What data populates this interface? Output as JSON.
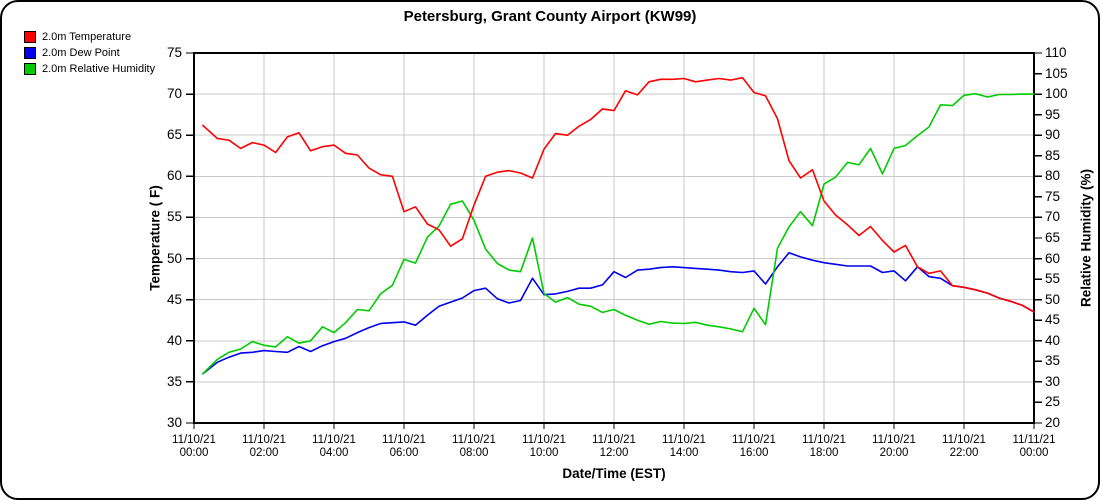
{
  "chart_data": {
    "type": "line",
    "title": "Petersburg, Grant County Airport (KW99)",
    "xlabel": "Date/Time (EST)",
    "legend_position": "top-left-outside",
    "grid": {
      "color": "#c9c9c9",
      "h_step_left_axis": 5,
      "v_step_hours": 2
    },
    "y_left": {
      "label": "Temperature ( F)",
      "min": 30,
      "max": 75,
      "tick_step": 5,
      "ticks": [
        75,
        70,
        65,
        60,
        55,
        50,
        45,
        40,
        35,
        30
      ]
    },
    "y_right": {
      "label": "Relative Humidity (%)",
      "min": 20,
      "max": 110,
      "tick_step": 5,
      "ticks": [
        110,
        105,
        100,
        95,
        90,
        85,
        80,
        75,
        70,
        65,
        60,
        55,
        50,
        45,
        40,
        35,
        30,
        25,
        20
      ]
    },
    "x_axis": {
      "min_hours": 0,
      "max_hours": 24
    },
    "x_ticks": [
      {
        "date": "11/10/21",
        "time": "00:00"
      },
      {
        "date": "11/10/21",
        "time": "02:00"
      },
      {
        "date": "11/10/21",
        "time": "04:00"
      },
      {
        "date": "11/10/21",
        "time": "06:00"
      },
      {
        "date": "11/10/21",
        "time": "08:00"
      },
      {
        "date": "11/10/21",
        "time": "10:00"
      },
      {
        "date": "11/10/21",
        "time": "12:00"
      },
      {
        "date": "11/10/21",
        "time": "14:00"
      },
      {
        "date": "11/10/21",
        "time": "16:00"
      },
      {
        "date": "11/10/21",
        "time": "18:00"
      },
      {
        "date": "11/10/21",
        "time": "20:00"
      },
      {
        "date": "11/10/21",
        "time": "22:00"
      },
      {
        "date": "11/11/21",
        "time": "00:00"
      }
    ],
    "x_hours": [
      0.25,
      0.67,
      1.0,
      1.33,
      1.67,
      2.0,
      2.33,
      2.67,
      3.0,
      3.33,
      3.67,
      4.0,
      4.33,
      4.67,
      5.0,
      5.33,
      5.67,
      6.0,
      6.33,
      6.67,
      7.0,
      7.33,
      7.67,
      8.0,
      8.33,
      8.67,
      9.0,
      9.33,
      9.67,
      10.0,
      10.33,
      10.67,
      11.0,
      11.33,
      11.67,
      12.0,
      12.33,
      12.67,
      13.0,
      13.33,
      13.67,
      14.0,
      14.33,
      14.67,
      15.0,
      15.33,
      15.67,
      16.0,
      16.33,
      16.67,
      17.0,
      17.33,
      17.67,
      18.0,
      18.33,
      18.67,
      19.0,
      19.33,
      19.67,
      20.0,
      20.33,
      20.67,
      21.0,
      21.33,
      21.67,
      22.0,
      22.33,
      22.67,
      23.0,
      23.33,
      23.67,
      24.0
    ],
    "series": [
      {
        "name": "2.0m Temperature",
        "axis": "left",
        "unit": "F",
        "color": "#ff0000",
        "values": [
          66.2,
          64.6,
          64.4,
          63.4,
          64.1,
          63.8,
          62.9,
          64.8,
          65.3,
          63.1,
          63.6,
          63.8,
          62.8,
          62.6,
          61.0,
          60.2,
          60.0,
          55.7,
          56.3,
          54.2,
          53.5,
          51.5,
          52.4,
          56.5,
          60.0,
          60.5,
          60.7,
          60.4,
          59.8,
          63.3,
          65.2,
          65.0,
          66.1,
          66.9,
          68.2,
          68.0,
          70.4,
          69.9,
          71.5,
          71.8,
          71.8,
          71.9,
          71.5,
          71.7,
          71.9,
          71.7,
          72.0,
          70.2,
          69.8,
          67.0,
          61.9,
          59.8,
          60.8,
          57.0,
          55.3,
          54.1,
          52.8,
          53.9,
          52.2,
          50.8,
          51.6,
          49.0,
          48.2,
          48.5,
          46.7,
          46.5,
          46.2,
          45.8,
          45.2,
          44.8,
          44.3,
          43.5
        ]
      },
      {
        "name": "2.0m Dew Point",
        "axis": "left",
        "unit": "F",
        "color": "#0000ee",
        "values": [
          36.0,
          37.4,
          38.0,
          38.5,
          38.6,
          38.8,
          38.7,
          38.6,
          39.3,
          38.7,
          39.4,
          39.9,
          40.3,
          41.0,
          41.6,
          42.1,
          42.2,
          42.3,
          41.9,
          43.1,
          44.2,
          44.7,
          45.2,
          46.1,
          46.4,
          45.1,
          44.6,
          44.9,
          47.6,
          45.6,
          45.7,
          46.0,
          46.4,
          46.4,
          46.8,
          48.4,
          47.7,
          48.6,
          48.7,
          48.9,
          49.0,
          48.9,
          48.8,
          48.7,
          48.6,
          48.4,
          48.3,
          48.5,
          46.9,
          49.0,
          50.7,
          50.2,
          49.8,
          49.5,
          49.3,
          49.1,
          49.1,
          49.1,
          48.3,
          48.5,
          47.3,
          49.0,
          47.8,
          47.6,
          46.7,
          46.5,
          46.2,
          45.8,
          45.2,
          44.8,
          44.3,
          43.5
        ]
      },
      {
        "name": "2.0m Relative Humidity",
        "axis": "right",
        "unit": "%",
        "color": "#00cc00",
        "values": [
          32.0,
          35.5,
          37.2,
          38.0,
          39.8,
          38.9,
          38.5,
          41.0,
          39.4,
          40.0,
          43.4,
          42.0,
          44.4,
          47.6,
          47.3,
          51.4,
          53.5,
          59.8,
          58.9,
          65.2,
          67.9,
          73.2,
          74.0,
          69.3,
          62.3,
          58.8,
          57.2,
          56.8,
          65.0,
          51.5,
          49.4,
          50.5,
          48.9,
          48.4,
          46.9,
          47.6,
          46.2,
          45.0,
          44.0,
          44.7,
          44.3,
          44.2,
          44.5,
          43.8,
          43.4,
          42.9,
          42.2,
          47.9,
          43.9,
          62.5,
          67.7,
          71.4,
          68.0,
          78.1,
          79.8,
          83.4,
          82.8,
          86.8,
          80.6,
          86.8,
          87.5,
          89.9,
          92.0,
          97.4,
          97.2,
          99.7,
          100.1,
          99.3,
          99.9,
          99.9,
          100.0,
          100.0
        ]
      }
    ]
  }
}
